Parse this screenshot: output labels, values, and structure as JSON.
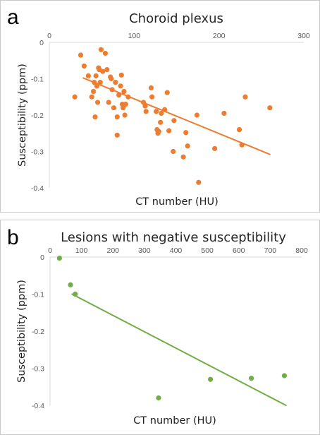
{
  "chart_data": [
    {
      "type": "scatter",
      "panel_label": "a",
      "title": "Choroid plexus",
      "xlabel": "CT number  (HU)",
      "ylabel": "Susceptibility (ppm)",
      "xlim": [
        0,
        300
      ],
      "ylim": [
        -0.4,
        0
      ],
      "x_ticks": [
        0,
        100,
        200,
        300
      ],
      "y_ticks": [
        0,
        -0.1,
        -0.2,
        -0.3,
        -0.4
      ],
      "x_tick_labels": [
        "0",
        "100",
        "200",
        "300"
      ],
      "y_tick_labels": [
        "0",
        "-0.1",
        "-0.2",
        "-0.3",
        "-0.4"
      ],
      "grid": false,
      "x_axis_position": "top",
      "color": "#ED7D31",
      "points": [
        [
          30,
          -0.15
        ],
        [
          37,
          -0.035
        ],
        [
          41,
          -0.065
        ],
        [
          46,
          -0.092
        ],
        [
          50,
          -0.15
        ],
        [
          52,
          -0.135
        ],
        [
          53,
          -0.11
        ],
        [
          54,
          -0.205
        ],
        [
          55,
          -0.092
        ],
        [
          56,
          -0.12
        ],
        [
          57,
          -0.165
        ],
        [
          58,
          -0.07
        ],
        [
          59,
          -0.075
        ],
        [
          60,
          -0.11
        ],
        [
          61,
          -0.02
        ],
        [
          63,
          -0.08
        ],
        [
          66,
          -0.03
        ],
        [
          68,
          -0.075
        ],
        [
          70,
          -0.165
        ],
        [
          72,
          -0.095
        ],
        [
          73,
          -0.1
        ],
        [
          74,
          -0.13
        ],
        [
          76,
          -0.18
        ],
        [
          78,
          -0.11
        ],
        [
          80,
          -0.205
        ],
        [
          80,
          -0.255
        ],
        [
          82,
          -0.145
        ],
        [
          84,
          -0.12
        ],
        [
          85,
          -0.09
        ],
        [
          86,
          -0.17
        ],
        [
          87,
          -0.18
        ],
        [
          88,
          -0.135
        ],
        [
          89,
          -0.2
        ],
        [
          90,
          -0.17
        ],
        [
          93,
          -0.15
        ],
        [
          111,
          -0.165
        ],
        [
          113,
          -0.175
        ],
        [
          114,
          -0.19
        ],
        [
          120,
          -0.125
        ],
        [
          121,
          -0.15
        ],
        [
          126,
          -0.19
        ],
        [
          127,
          -0.24
        ],
        [
          128,
          -0.25
        ],
        [
          129,
          -0.245
        ],
        [
          131,
          -0.22
        ],
        [
          132,
          -0.195
        ],
        [
          136,
          -0.185
        ],
        [
          139,
          -0.138
        ],
        [
          141,
          -0.243
        ],
        [
          146,
          -0.3
        ],
        [
          147,
          -0.215
        ],
        [
          158,
          -0.315
        ],
        [
          161,
          -0.248
        ],
        [
          163,
          -0.285
        ],
        [
          174,
          -0.2
        ],
        [
          176,
          -0.385
        ],
        [
          195,
          -0.292
        ],
        [
          206,
          -0.195
        ],
        [
          224,
          -0.24
        ],
        [
          227,
          -0.282
        ],
        [
          231,
          -0.15
        ],
        [
          260,
          -0.18
        ]
      ],
      "trendline": {
        "x": [
          40,
          260
        ],
        "y": [
          -0.098,
          -0.308
        ]
      }
    },
    {
      "type": "scatter",
      "panel_label": "b",
      "title": "Lesions with negative susceptibility",
      "xlabel": "CT number  (HU)",
      "ylabel": "Susceptibility (ppm)",
      "xlim": [
        0,
        800
      ],
      "ylim": [
        -0.4,
        0
      ],
      "x_ticks": [
        0,
        100,
        200,
        300,
        400,
        500,
        600,
        700,
        800
      ],
      "y_ticks": [
        0,
        -0.1,
        -0.2,
        -0.3,
        -0.4
      ],
      "x_tick_labels": [
        "0",
        "100",
        "200",
        "300",
        "400",
        "500",
        "600",
        "700",
        "800"
      ],
      "y_tick_labels": [
        "0",
        "-0.1",
        "-0.2",
        "-0.3",
        "-0.4"
      ],
      "grid": false,
      "x_axis_position": "top",
      "color": "#70AD47",
      "points": [
        [
          30,
          -0.003
        ],
        [
          65,
          -0.075
        ],
        [
          80,
          -0.1
        ],
        [
          345,
          -0.38
        ],
        [
          510,
          -0.33
        ],
        [
          640,
          -0.327
        ],
        [
          745,
          -0.32
        ]
      ],
      "trendline": {
        "x": [
          70,
          750
        ],
        "y": [
          -0.1,
          -0.4
        ]
      }
    }
  ]
}
